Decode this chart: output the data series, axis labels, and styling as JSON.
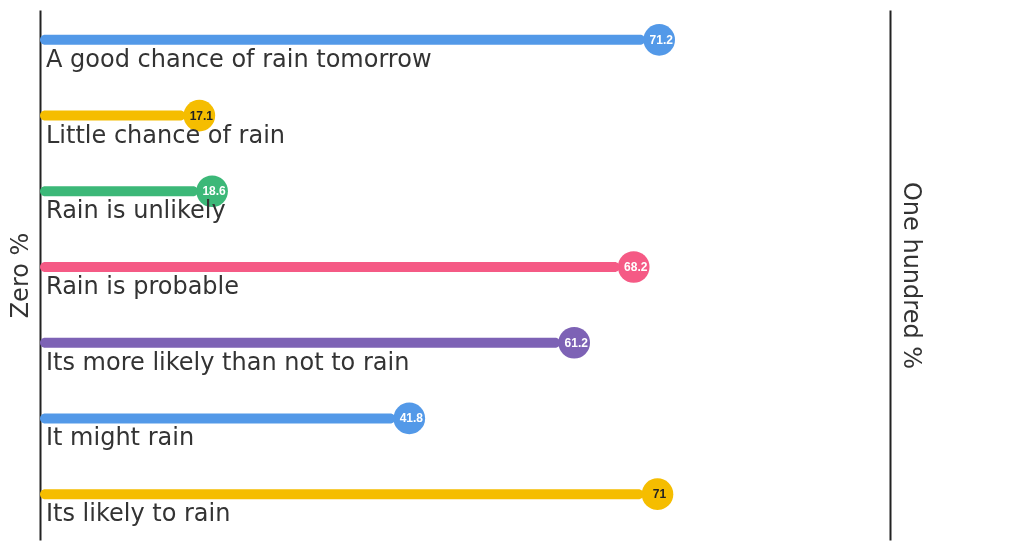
{
  "chart_data": {
    "type": "bar",
    "orientation": "horizontal",
    "categories": [
      "A good chance of rain tomorrow",
      "Little chance of rain",
      "Rain is unlikely",
      "Rain is probable",
      "Its more likely than not to rain",
      "It might rain",
      "Its likely to rain"
    ],
    "values": [
      71.2,
      17.1,
      18.6,
      68.2,
      61.2,
      41.8,
      71
    ],
    "colors": [
      "#5399e8",
      "#f5bd00",
      "#3cb878",
      "#f55a85",
      "#7d62b5",
      "#5399e8",
      "#f5bd00"
    ],
    "xlim": [
      0,
      100
    ],
    "ylabel": "Zero %",
    "y2label": "One hundred %",
    "data_labels": true
  }
}
